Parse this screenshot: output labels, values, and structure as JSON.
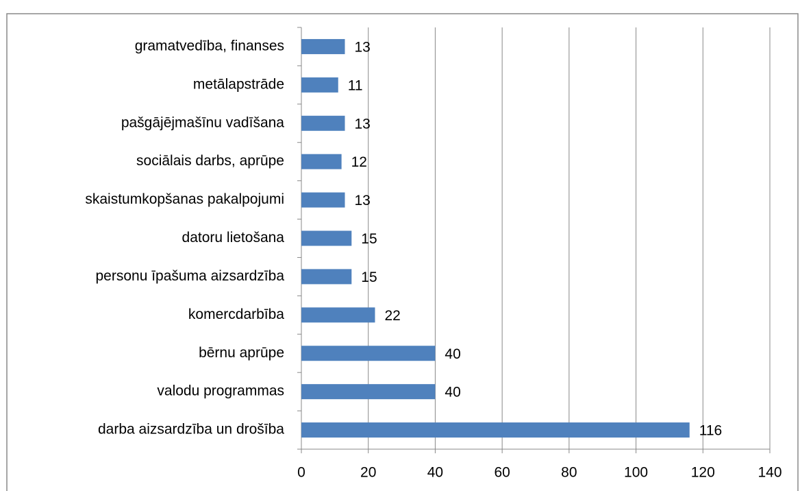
{
  "chart_data": {
    "type": "bar",
    "orientation": "horizontal",
    "categories": [
      "gramatvedība, finanses",
      "metālapstrāde",
      "pašgājējmašīnu vadīšana",
      "sociālais darbs, aprūpe",
      "skaistumkopšanas pakalpojumi",
      "datoru lietošana",
      "personu īpašuma aizsardzība",
      "komercdarbība",
      "bērnu aprūpe",
      "valodu programmas",
      "darba aizsardzība un drošība"
    ],
    "values": [
      13,
      11,
      13,
      12,
      13,
      15,
      15,
      22,
      40,
      40,
      116
    ],
    "color": "#4f81bd",
    "xlim": [
      0,
      140
    ],
    "xticks": [
      0,
      20,
      40,
      60,
      80,
      100,
      120,
      140
    ],
    "grid": true
  }
}
